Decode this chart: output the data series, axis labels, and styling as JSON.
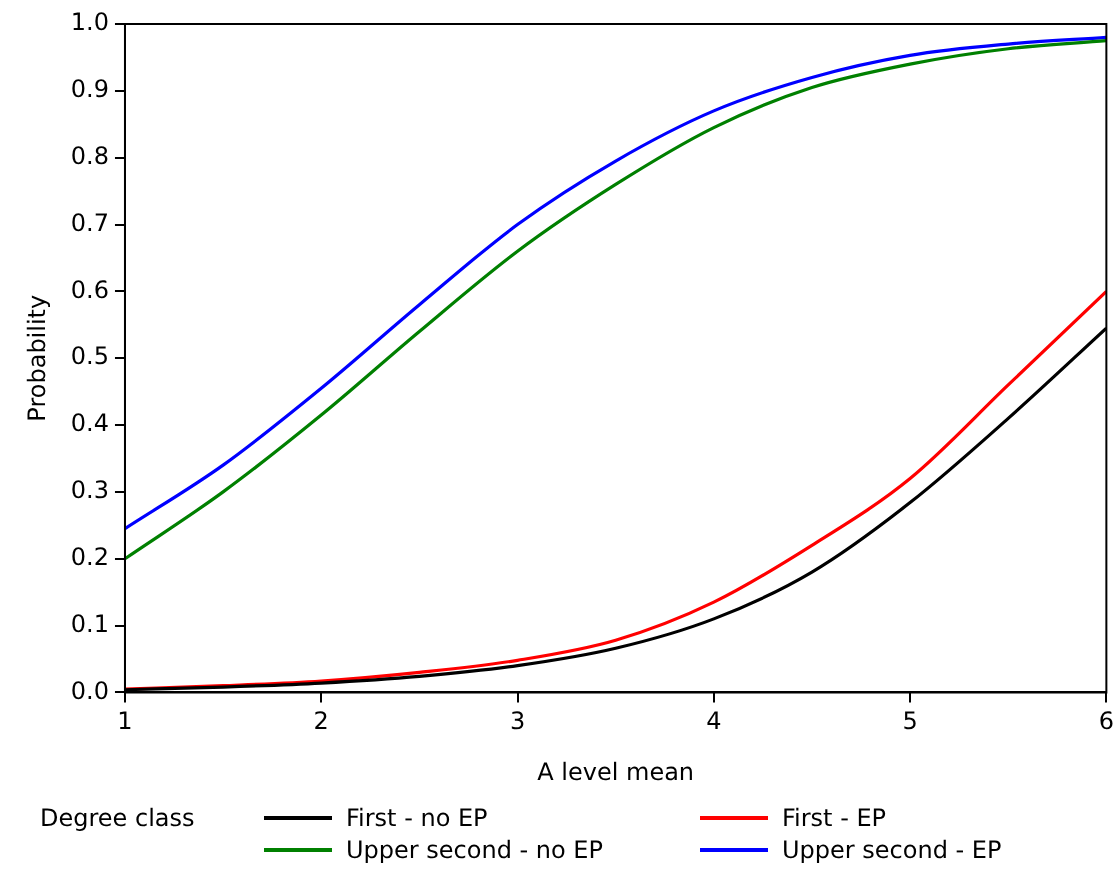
{
  "chart_data": {
    "type": "line",
    "xlabel": "A level mean",
    "ylabel": "Probability",
    "legend_title": "Degree class",
    "legend": "bottom",
    "grid": false,
    "marker": "none",
    "line_style": "solid",
    "x": [
      1,
      1.5,
      2,
      2.5,
      3,
      3.5,
      4,
      4.5,
      5,
      5.5,
      6
    ],
    "xlim": [
      1,
      6
    ],
    "xticks": [
      1,
      2,
      3,
      4,
      5,
      6
    ],
    "ylim": [
      0,
      1
    ],
    "yticks": [
      {
        "value": 0,
        "label": "0.0"
      },
      0.1,
      0.2,
      0.3,
      0.4,
      0.5,
      0.6,
      0.7,
      0.8,
      0.9,
      {
        "value": 1,
        "label": "1.0"
      }
    ],
    "series": [
      {
        "name": "First - no EP",
        "color": "#000000",
        "values": [
          0.004,
          0.008,
          0.014,
          0.024,
          0.04,
          0.066,
          0.11,
          0.18,
          0.284,
          0.41,
          0.545
        ]
      },
      {
        "name": "First - EP",
        "color": "#ff0000",
        "values": [
          0.005,
          0.01,
          0.017,
          0.03,
          0.048,
          0.078,
          0.135,
          0.22,
          0.32,
          0.46,
          0.6
        ]
      },
      {
        "name": "Upper second - no EP",
        "color": "#008000",
        "values": [
          0.2,
          0.3,
          0.415,
          0.54,
          0.66,
          0.76,
          0.845,
          0.905,
          0.94,
          0.963,
          0.975
        ]
      },
      {
        "name": "Upper second - EP",
        "color": "#0000ff",
        "values": [
          0.245,
          0.34,
          0.455,
          0.58,
          0.7,
          0.795,
          0.87,
          0.92,
          0.953,
          0.97,
          0.98
        ]
      }
    ]
  }
}
